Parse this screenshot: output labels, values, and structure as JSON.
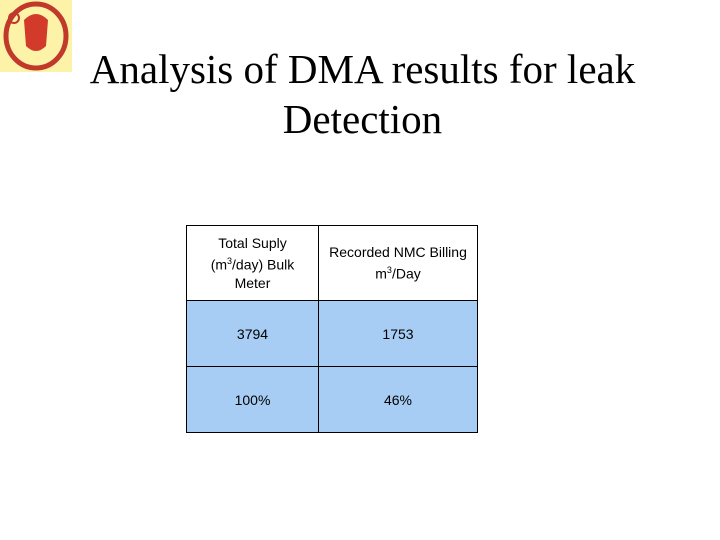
{
  "title": "Analysis of DMA results for leak Detection",
  "table": {
    "header": [
      {
        "before": "Total Suply (m",
        "sup": "3",
        "after": "/day) Bulk Meter"
      },
      {
        "before": "Recorded NMC Billing m",
        "sup": "3",
        "after": "/Day"
      }
    ],
    "rows": [
      [
        "3794",
        "1753"
      ],
      [
        "100%",
        "46%"
      ]
    ]
  }
}
